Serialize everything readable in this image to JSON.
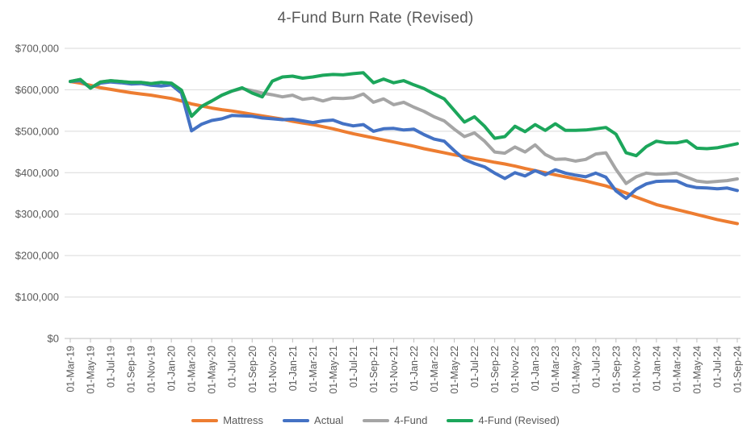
{
  "chart_data": {
    "type": "line",
    "title": "4-Fund Burn Rate (Revised)",
    "grid": true,
    "legend_position": "bottom",
    "y_axis": {
      "min": 0,
      "max": 700000,
      "tick_step": 100000,
      "tick_labels": [
        "$0",
        "$100,000",
        "$200,000",
        "$300,000",
        "$400,000",
        "$500,000",
        "$600,000",
        "$700,000"
      ]
    },
    "x_axis": {
      "tick_labels": [
        "01-Mar-19",
        "01-May-19",
        "01-Jul-19",
        "01-Sep-19",
        "01-Nov-19",
        "01-Jan-20",
        "01-Mar-20",
        "01-May-20",
        "01-Jul-20",
        "01-Sep-20",
        "01-Nov-20",
        "01-Jan-21",
        "01-Mar-21",
        "01-May-21",
        "01-Jul-21",
        "01-Sep-21",
        "01-Nov-21",
        "01-Jan-22",
        "01-Mar-22",
        "01-May-22",
        "01-Jul-22",
        "01-Sep-22",
        "01-Nov-22",
        "01-Jan-23",
        "01-Mar-23",
        "01-May-23",
        "01-Jul-23",
        "01-Sep-23",
        "01-Nov-23",
        "01-Jan-24",
        "01-Mar-24",
        "01-May-24",
        "01-Jul-24",
        "01-Sep-24"
      ]
    },
    "x_months": [
      "01-Mar-19",
      "01-Apr-19",
      "01-May-19",
      "01-Jun-19",
      "01-Jul-19",
      "01-Aug-19",
      "01-Sep-19",
      "01-Oct-19",
      "01-Nov-19",
      "01-Dec-19",
      "01-Jan-20",
      "01-Feb-20",
      "01-Mar-20",
      "01-Apr-20",
      "01-May-20",
      "01-Jun-20",
      "01-Jul-20",
      "01-Aug-20",
      "01-Sep-20",
      "01-Oct-20",
      "01-Nov-20",
      "01-Dec-20",
      "01-Jan-21",
      "01-Feb-21",
      "01-Mar-21",
      "01-Apr-21",
      "01-May-21",
      "01-Jun-21",
      "01-Jul-21",
      "01-Aug-21",
      "01-Sep-21",
      "01-Oct-21",
      "01-Nov-21",
      "01-Dec-21",
      "01-Jan-22",
      "01-Feb-22",
      "01-Mar-22",
      "01-Apr-22",
      "01-May-22",
      "01-Jun-22",
      "01-Jul-22",
      "01-Aug-22",
      "01-Sep-22",
      "01-Oct-22",
      "01-Nov-22",
      "01-Dec-22",
      "01-Jan-23",
      "01-Feb-23",
      "01-Mar-23",
      "01-Apr-23",
      "01-May-23",
      "01-Jun-23",
      "01-Jul-23",
      "01-Aug-23",
      "01-Sep-23",
      "01-Oct-23",
      "01-Nov-23",
      "01-Dec-23",
      "01-Jan-24",
      "01-Feb-24",
      "01-Mar-24",
      "01-Apr-24",
      "01-May-24",
      "01-Jun-24",
      "01-Jul-24",
      "01-Aug-24",
      "01-Sep-24"
    ],
    "series": [
      {
        "name": "Mattress",
        "color": "#ED7D31",
        "values": [
          620000,
          616000,
          611000,
          605000,
          601000,
          597000,
          593000,
          590000,
          587000,
          583000,
          579000,
          573000,
          566000,
          561000,
          556000,
          552000,
          549000,
          545000,
          541000,
          537000,
          533000,
          529000,
          524000,
          520000,
          516000,
          511000,
          506000,
          500000,
          494000,
          489000,
          484000,
          479000,
          474000,
          469000,
          464000,
          458000,
          453000,
          448000,
          443000,
          439000,
          434000,
          430000,
          425000,
          421000,
          416000,
          410000,
          405000,
          400000,
          395000,
          390000,
          385000,
          380000,
          374000,
          368000,
          360000,
          351000,
          341000,
          332000,
          323000,
          317000,
          311000,
          305000,
          299000,
          293000,
          287000,
          282000,
          277000
        ]
      },
      {
        "name": "Actual",
        "color": "#4472C4",
        "values": [
          620000,
          622000,
          605000,
          616000,
          619000,
          617000,
          614000,
          615000,
          611000,
          609000,
          612000,
          592000,
          501000,
          517000,
          526000,
          530000,
          538000,
          537000,
          536000,
          532000,
          530000,
          528000,
          529000,
          525000,
          521000,
          525000,
          527000,
          518000,
          513000,
          516000,
          500000,
          506000,
          507000,
          503000,
          505000,
          492000,
          481000,
          476000,
          453000,
          432000,
          422000,
          414000,
          399000,
          386000,
          400000,
          392000,
          405000,
          395000,
          407000,
          399000,
          394000,
          390000,
          399000,
          389000,
          356000,
          338000,
          360000,
          373000,
          379000,
          380000,
          380000,
          369000,
          364000,
          363000,
          361000,
          363000,
          357000
        ]
      },
      {
        "name": "4-Fund",
        "color": "#A5A5A5",
        "values": [
          620000,
          625000,
          604000,
          619000,
          622000,
          620000,
          618000,
          618000,
          615000,
          618000,
          616000,
          599000,
          536000,
          560000,
          573000,
          587000,
          597000,
          603000,
          598000,
          592000,
          588000,
          583000,
          587000,
          577000,
          580000,
          573000,
          580000,
          579000,
          581000,
          590000,
          570000,
          578000,
          564000,
          570000,
          558000,
          548000,
          535000,
          525000,
          505000,
          487000,
          496000,
          476000,
          450000,
          447000,
          462000,
          450000,
          467000,
          444000,
          432000,
          433000,
          428000,
          432000,
          445000,
          448000,
          408000,
          374000,
          390000,
          399000,
          396000,
          397000,
          399000,
          389000,
          380000,
          377000,
          379000,
          381000,
          385000
        ]
      },
      {
        "name": "4-Fund (Revised)",
        "color": "#1CA65B",
        "values": [
          620000,
          625000,
          604000,
          619000,
          622000,
          620000,
          618000,
          618000,
          615000,
          618000,
          616000,
          599000,
          536000,
          560000,
          573000,
          587000,
          597000,
          605000,
          592000,
          583000,
          621000,
          631000,
          633000,
          628000,
          631000,
          635000,
          637000,
          636000,
          639000,
          641000,
          617000,
          626000,
          617000,
          622000,
          612000,
          603000,
          590000,
          578000,
          550000,
          522000,
          535000,
          512000,
          483000,
          487000,
          512000,
          499000,
          516000,
          502000,
          518000,
          502000,
          502000,
          503000,
          506000,
          509000,
          493000,
          448000,
          441000,
          463000,
          476000,
          472000,
          472000,
          477000,
          459000,
          458000,
          460000,
          465000,
          470000
        ]
      }
    ],
    "colors": {
      "grid": "#D9D9D9",
      "axis": "#BFBFBF",
      "tick_text": "#595959",
      "title_text": "#595959",
      "legend_text": "#595959",
      "background": "#FFFFFF"
    }
  }
}
